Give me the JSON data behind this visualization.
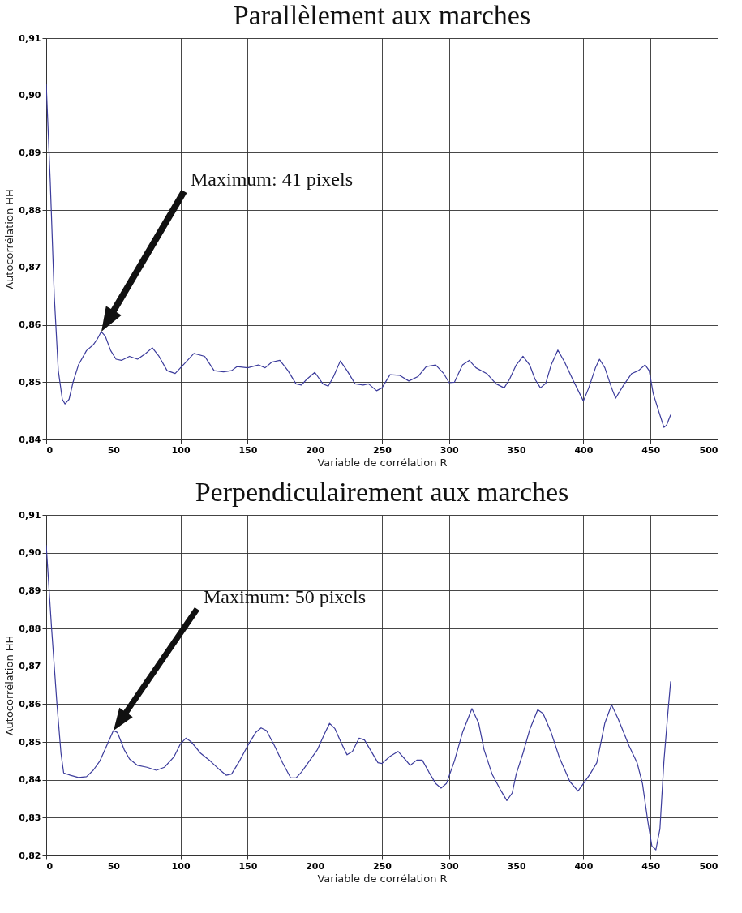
{
  "chart_data": [
    {
      "type": "line",
      "title": "Parallèlement aux marches",
      "xlabel": "Variable de corrélation R",
      "ylabel": "Autocorrélation HH",
      "series": [
        {
          "color": "#3c3c9c",
          "x": [
            0,
            3,
            6,
            9,
            12,
            14,
            17,
            20,
            24,
            30,
            35,
            38,
            41,
            44,
            48,
            52,
            56,
            62,
            68,
            74,
            79,
            84,
            90,
            96,
            102,
            110,
            118,
            125,
            132,
            138,
            142,
            150,
            158,
            163,
            168,
            174,
            180,
            186,
            190,
            194,
            200,
            206,
            210,
            214,
            219,
            224,
            230,
            236,
            240,
            246,
            250,
            256,
            263,
            270,
            277,
            283,
            290,
            296,
            300,
            304,
            310,
            315,
            320,
            328,
            335,
            341,
            345,
            350,
            355,
            360,
            364,
            368,
            372,
            376,
            381,
            386,
            392,
            400,
            404,
            409,
            412,
            416,
            421,
            424,
            430,
            436,
            441,
            446,
            449,
            452,
            456,
            460,
            462,
            465
          ],
          "values": [
            0.902,
            0.885,
            0.865,
            0.852,
            0.847,
            0.8462,
            0.847,
            0.85,
            0.853,
            0.8555,
            0.8565,
            0.8575,
            0.8588,
            0.858,
            0.8555,
            0.854,
            0.8538,
            0.8545,
            0.854,
            0.855,
            0.856,
            0.8545,
            0.852,
            0.8515,
            0.853,
            0.855,
            0.8545,
            0.852,
            0.8518,
            0.852,
            0.8527,
            0.8525,
            0.853,
            0.8525,
            0.8535,
            0.8538,
            0.852,
            0.8497,
            0.8495,
            0.8505,
            0.8517,
            0.8497,
            0.8493,
            0.851,
            0.8537,
            0.852,
            0.8497,
            0.8495,
            0.8497,
            0.8485,
            0.849,
            0.8513,
            0.8512,
            0.8502,
            0.851,
            0.8527,
            0.853,
            0.8515,
            0.8499,
            0.85,
            0.853,
            0.8538,
            0.8525,
            0.8515,
            0.8497,
            0.849,
            0.8505,
            0.853,
            0.8545,
            0.853,
            0.8505,
            0.849,
            0.8498,
            0.853,
            0.8556,
            0.8535,
            0.8505,
            0.8467,
            0.849,
            0.8525,
            0.854,
            0.8525,
            0.849,
            0.8472,
            0.8495,
            0.8515,
            0.852,
            0.853,
            0.852,
            0.848,
            0.845,
            0.8421,
            0.8425,
            0.8443
          ]
        }
      ],
      "xlim": [
        0,
        500
      ],
      "xticks": [
        0,
        50,
        100,
        150,
        200,
        250,
        300,
        350,
        400,
        450,
        500
      ],
      "ylim": [
        0.84,
        0.91
      ],
      "yticks": [
        {
          "value": 0.84,
          "label": "0,84"
        },
        {
          "value": 0.85,
          "label": "0,85"
        },
        {
          "value": 0.86,
          "label": "0,86"
        },
        {
          "value": 0.87,
          "label": "0,87"
        },
        {
          "value": 0.88,
          "label": "0,88"
        },
        {
          "value": 0.89,
          "label": "0,89"
        },
        {
          "value": 0.9,
          "label": "0,90"
        },
        {
          "value": 0.91,
          "label": "0,91"
        }
      ],
      "grid": true,
      "line_style": "solid",
      "marker": "none",
      "annotations": [
        "Maximum: 41 pixels"
      ]
    },
    {
      "type": "line",
      "title": "Perpendiculairement  aux marches",
      "xlabel": "Variable de corrélation R",
      "ylabel": "Autocorrélation HH",
      "series": [
        {
          "color": "#3c3c9c",
          "x": [
            0,
            4,
            8,
            11,
            13,
            18,
            24,
            30,
            35,
            40,
            45,
            50,
            53,
            58,
            62,
            68,
            75,
            82,
            88,
            95,
            100,
            104,
            108,
            115,
            122,
            128,
            134,
            138,
            144,
            150,
            156,
            160,
            164,
            170,
            176,
            182,
            186,
            190,
            196,
            202,
            207,
            211,
            215,
            220,
            224,
            228,
            233,
            237,
            242,
            247,
            250,
            256,
            262,
            267,
            271,
            276,
            280,
            285,
            290,
            294,
            298,
            304,
            310,
            317,
            322,
            326,
            332,
            338,
            343,
            347,
            350,
            355,
            360,
            366,
            370,
            376,
            382,
            390,
            396,
            400,
            405,
            410,
            416,
            421,
            426,
            434,
            440,
            444,
            448,
            451,
            454,
            457,
            460,
            463,
            465
          ],
          "values": [
            0.902,
            0.88,
            0.86,
            0.847,
            0.8418,
            0.8412,
            0.8406,
            0.8408,
            0.8425,
            0.845,
            0.849,
            0.853,
            0.8525,
            0.848,
            0.8455,
            0.8438,
            0.8433,
            0.8425,
            0.8433,
            0.846,
            0.8495,
            0.851,
            0.85,
            0.847,
            0.845,
            0.843,
            0.8412,
            0.8415,
            0.845,
            0.849,
            0.8525,
            0.8537,
            0.853,
            0.849,
            0.8445,
            0.8405,
            0.8405,
            0.842,
            0.845,
            0.848,
            0.852,
            0.8549,
            0.8535,
            0.8495,
            0.8466,
            0.8475,
            0.851,
            0.8505,
            0.8475,
            0.8445,
            0.8443,
            0.8462,
            0.8475,
            0.8455,
            0.8438,
            0.8452,
            0.8452,
            0.842,
            0.839,
            0.8378,
            0.839,
            0.845,
            0.8525,
            0.8588,
            0.855,
            0.848,
            0.8415,
            0.8375,
            0.8345,
            0.8365,
            0.8415,
            0.847,
            0.8532,
            0.8585,
            0.8575,
            0.8525,
            0.846,
            0.8395,
            0.837,
            0.839,
            0.8415,
            0.8445,
            0.855,
            0.8598,
            0.856,
            0.849,
            0.8445,
            0.839,
            0.829,
            0.8225,
            0.8215,
            0.827,
            0.845,
            0.858,
            0.866
          ]
        }
      ],
      "xlim": [
        0,
        500
      ],
      "xticks": [
        0,
        50,
        100,
        150,
        200,
        250,
        300,
        350,
        400,
        450,
        500
      ],
      "ylim": [
        0.82,
        0.91
      ],
      "yticks": [
        {
          "value": 0.82,
          "label": "0,82"
        },
        {
          "value": 0.83,
          "label": "0,83"
        },
        {
          "value": 0.84,
          "label": "0,84"
        },
        {
          "value": 0.85,
          "label": "0,85"
        },
        {
          "value": 0.86,
          "label": "0,86"
        },
        {
          "value": 0.87,
          "label": "0,87"
        },
        {
          "value": 0.88,
          "label": "0,88"
        },
        {
          "value": 0.89,
          "label": "0,89"
        },
        {
          "value": 0.9,
          "label": "0,90"
        },
        {
          "value": 0.91,
          "label": "0,91"
        }
      ],
      "grid": true,
      "line_style": "solid",
      "marker": "none",
      "annotations": [
        "Maximum: 50 pixels"
      ]
    }
  ]
}
